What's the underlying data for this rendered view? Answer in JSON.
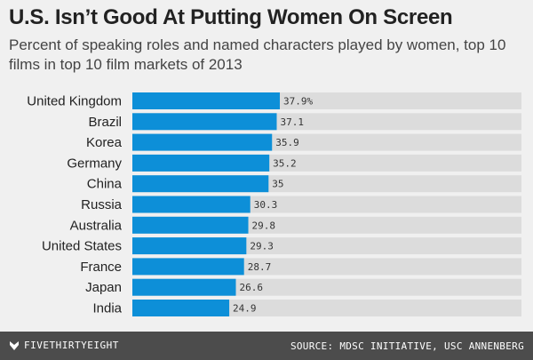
{
  "chart_data": {
    "type": "bar",
    "orientation": "horizontal",
    "title": "U.S. Isn’t Good At Putting Women On Screen",
    "subtitle": "Percent of speaking roles and named characters played by women, top 10 films in top 10 film markets of 2013",
    "categories": [
      "United Kingdom",
      "Brazil",
      "Korea",
      "Germany",
      "China",
      "Russia",
      "Australia",
      "United States",
      "France",
      "Japan",
      "India"
    ],
    "values": [
      37.9,
      37.1,
      35.9,
      35.2,
      35,
      30.3,
      29.8,
      29.3,
      28.7,
      26.6,
      24.9
    ],
    "value_labels": [
      "37.9%",
      "37.1",
      "35.9",
      "35.2",
      "35",
      "30.3",
      "29.8",
      "29.3",
      "28.7",
      "26.6",
      "24.9"
    ],
    "xlim": [
      0,
      100
    ],
    "bar_color": "#0d8fd8",
    "track_color": "#dcdcdc"
  },
  "footer": {
    "brand": "FIVETHIRTYEIGHT",
    "source": "SOURCE: MDSC INITIATIVE, USC ANNENBERG"
  }
}
